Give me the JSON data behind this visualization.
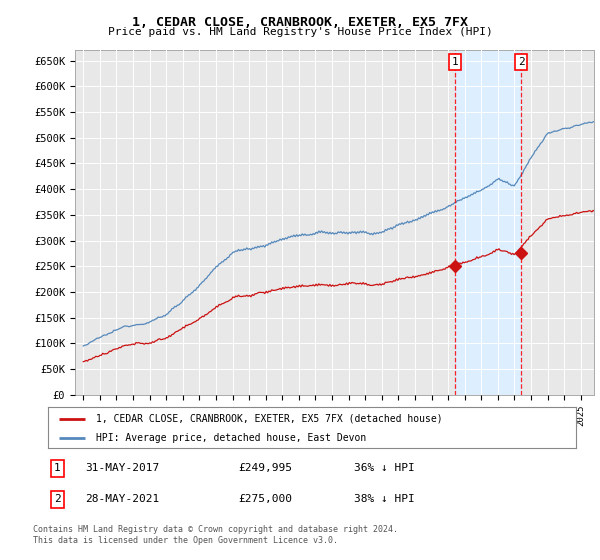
{
  "title": "1, CEDAR CLOSE, CRANBROOK, EXETER, EX5 7FX",
  "subtitle": "Price paid vs. HM Land Registry's House Price Index (HPI)",
  "ylim": [
    0,
    670000
  ],
  "yticks": [
    0,
    50000,
    100000,
    150000,
    200000,
    250000,
    300000,
    350000,
    400000,
    450000,
    500000,
    550000,
    600000,
    650000
  ],
  "ytick_labels": [
    "£0",
    "£50K",
    "£100K",
    "£150K",
    "£200K",
    "£250K",
    "£300K",
    "£350K",
    "£400K",
    "£450K",
    "£500K",
    "£550K",
    "£600K",
    "£650K"
  ],
  "background_color": "#ffffff",
  "plot_bg_color": "#e8e8e8",
  "grid_color": "#ffffff",
  "hpi_color": "#5588bb",
  "price_color": "#cc1111",
  "shade_color": "#ddeeff",
  "sale1_date_num": 2017.41,
  "sale1_price": 249995,
  "sale2_date_num": 2021.41,
  "sale2_price": 275000,
  "legend_label1": "1, CEDAR CLOSE, CRANBROOK, EXETER, EX5 7FX (detached house)",
  "legend_label2": "HPI: Average price, detached house, East Devon",
  "table_row1": [
    "1",
    "31-MAY-2017",
    "£249,995",
    "36% ↓ HPI"
  ],
  "table_row2": [
    "2",
    "28-MAY-2021",
    "£275,000",
    "38% ↓ HPI"
  ],
  "footer": "Contains HM Land Registry data © Crown copyright and database right 2024.\nThis data is licensed under the Open Government Licence v3.0.",
  "xmin": 1994.5,
  "xmax": 2025.8
}
